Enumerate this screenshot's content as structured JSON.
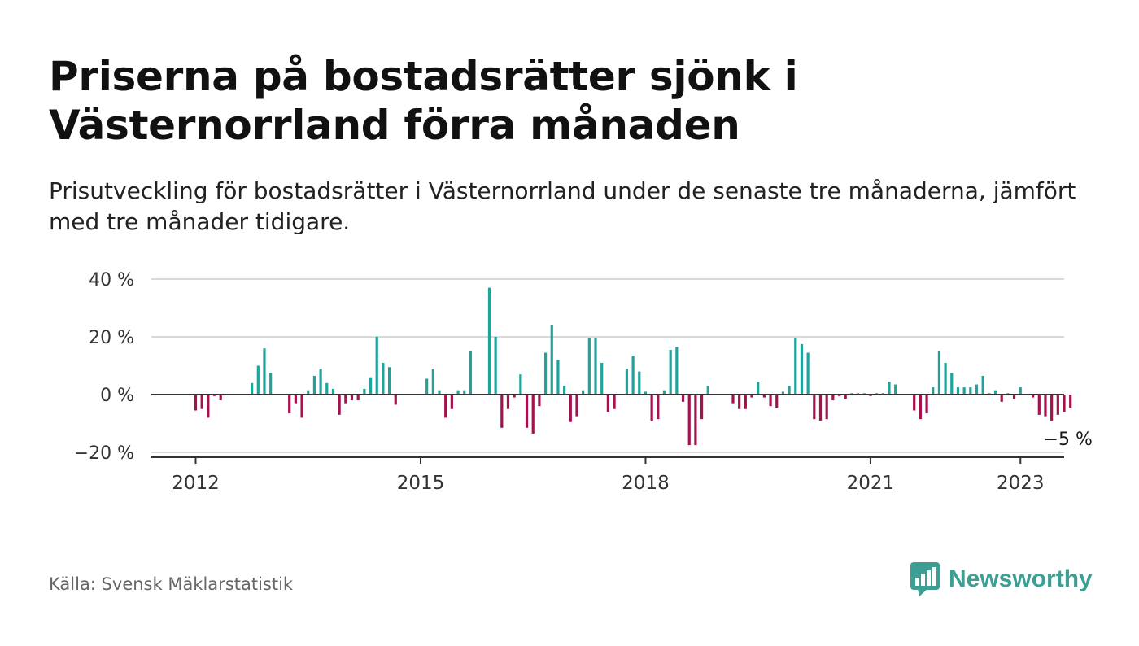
{
  "title": "Priserna på bostadsrätter sjönk i Västernorrland förra månaden",
  "subtitle": "Prisutveckling för bostadsrätter i Västernorrland under de senaste tre månaderna, jämfört med tre månader tidigare.",
  "source": "Källa: Svensk Mäklarstatistik",
  "brand": {
    "name": "Newsworthy",
    "logo_icon": "bar-chart-speech-bubble-icon",
    "color": "#3d9f94"
  },
  "colors": {
    "positive": "#1fa39a",
    "negative": "#a3124f",
    "grid": "#d9d9d9",
    "axis": "#333333"
  },
  "chart_data": {
    "type": "bar",
    "title": "",
    "xlabel": "",
    "ylabel": "",
    "start": "2012-01",
    "x_ticks": [
      "2012",
      "2015",
      "2018",
      "2021",
      "2023"
    ],
    "y_ticks": [
      40,
      20,
      0,
      -20
    ],
    "y_tick_labels": [
      "40 %",
      "20 %",
      "0 %",
      "−20 %"
    ],
    "ylim": [
      -21,
      40
    ],
    "grid": true,
    "annotation": {
      "text": "−5 %"
    },
    "values": [
      -5.5,
      -5,
      -8,
      -0.5,
      -2,
      0,
      0,
      0,
      0,
      4,
      10,
      16,
      7.5,
      0,
      0,
      -6.5,
      -3,
      -8,
      1.5,
      6.5,
      9,
      4,
      2,
      -7,
      -3,
      -2,
      -2,
      2,
      6,
      20,
      11,
      9.5,
      -3.5,
      0,
      0,
      0,
      0,
      5.5,
      9,
      1.5,
      -8,
      -5,
      1.5,
      1.5,
      15,
      0,
      0,
      37,
      20,
      -11.5,
      -5,
      -1,
      7,
      -11.5,
      -13.5,
      -4,
      14.5,
      24,
      12,
      3,
      -9.5,
      -7.5,
      1.5,
      19.5,
      19.5,
      11,
      -6,
      -5,
      0,
      9,
      13.5,
      8,
      1,
      -9,
      -8.5,
      1.5,
      15.5,
      16.5,
      -2.5,
      -17.5,
      -17.5,
      -8.5,
      3,
      0,
      0,
      0,
      -3,
      -5,
      -5,
      -1,
      4.5,
      -1,
      -4,
      -4.5,
      1,
      3,
      19.5,
      17.5,
      14.5,
      -8.5,
      -9,
      -8.5,
      -2,
      -0.5,
      -1.5,
      0.5,
      0.5,
      0.5,
      -0.5,
      0.5,
      0.5,
      4.5,
      3.5,
      0,
      0,
      -5.5,
      -8.5,
      -6.5,
      2.5,
      15,
      11,
      7.5,
      2.5,
      2.5,
      2.5,
      3.5,
      6.5,
      0.5,
      1.5,
      -2.5,
      0.5,
      -1.5,
      2.5,
      0,
      -1,
      -7,
      -7.5,
      -9,
      -7,
      -6,
      -4.5
    ]
  }
}
